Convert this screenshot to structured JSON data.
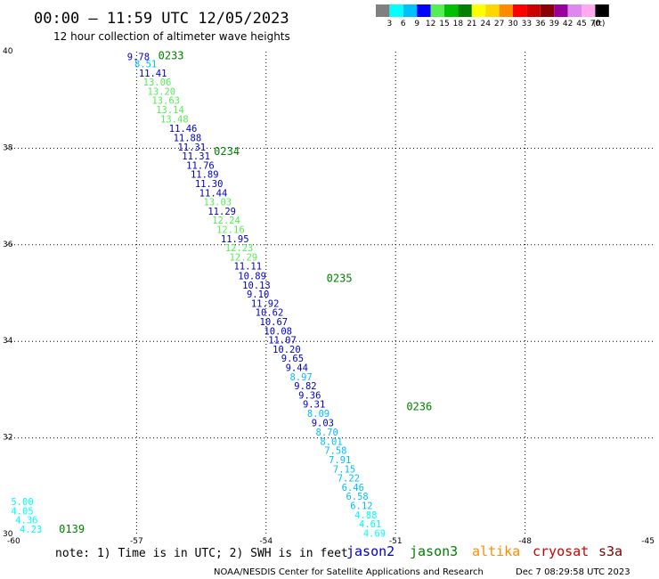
{
  "title": "00:00 – 11:59 UTC 12/05/2023",
  "subtitle": "12 hour collection of altimeter wave heights",
  "note": "note: 1) Time is in UTC; 2) SWH is in feet",
  "credit": "NOAA/NESDIS Center for Satellite Applications and Research",
  "timestamp": "Dec  7 08:29:58 UTC 2023",
  "satellites": [
    {
      "name": "jason2",
      "color": "#0000cc"
    },
    {
      "name": "jason3",
      "color": "#008000"
    },
    {
      "name": "altika",
      "color": "#ff8c00"
    },
    {
      "name": "cryosat",
      "color": "#cc0000"
    },
    {
      "name": "s3a",
      "color": "#800000"
    }
  ],
  "colorbar": {
    "unit": "(ft)",
    "colors": [
      "#808080",
      "#00ffff",
      "#00bfff",
      "#0000ff",
      "#55ee55",
      "#00c000",
      "#008000",
      "#ffff00",
      "#ffd700",
      "#ff8c00",
      "#ff0000",
      "#cc0000",
      "#8b0000",
      "#990099",
      "#dd88ee",
      "#ffaaee",
      "#000000"
    ],
    "labels": [
      "3",
      "6",
      "9",
      "12",
      "15",
      "18",
      "21",
      "24",
      "27",
      "30",
      "33",
      "36",
      "39",
      "42",
      "45",
      "70"
    ]
  },
  "chart_data": {
    "type": "scatter",
    "title": "00:00 – 11:59 UTC 12/05/2023",
    "subtitle": "12 hour collection of altimeter wave heights",
    "xlim": [
      -60,
      -45
    ],
    "ylim": [
      30,
      40
    ],
    "xticks": [
      "-60",
      "-57",
      "-54",
      "-51",
      "-48",
      "-45"
    ],
    "yticks": [
      "30",
      "32",
      "34",
      "36",
      "38",
      "40"
    ],
    "grid": true,
    "points": [
      {
        "lon": -57.22,
        "lat": 39.9,
        "v": "9.78",
        "c": "#0000cc"
      },
      {
        "lon": -57.05,
        "lat": 39.75,
        "v": "8.51",
        "c": "#00bfff"
      },
      {
        "lon": -56.95,
        "lat": 39.56,
        "v": "11.41",
        "c": "#0000cc"
      },
      {
        "lon": -56.85,
        "lat": 39.37,
        "v": "13.06",
        "c": "#55ee55"
      },
      {
        "lon": -56.75,
        "lat": 39.18,
        "v": "13.20",
        "c": "#55ee55"
      },
      {
        "lon": -56.65,
        "lat": 38.99,
        "v": "13.63",
        "c": "#55ee55"
      },
      {
        "lon": -56.55,
        "lat": 38.8,
        "v": "13.14",
        "c": "#55ee55"
      },
      {
        "lon": -56.45,
        "lat": 38.61,
        "v": "13.48",
        "c": "#55ee55"
      },
      {
        "lon": -56.25,
        "lat": 38.41,
        "v": "11.46",
        "c": "#0000cc"
      },
      {
        "lon": -56.15,
        "lat": 38.22,
        "v": "11.88",
        "c": "#0000cc"
      },
      {
        "lon": -56.05,
        "lat": 38.03,
        "v": "11.31",
        "c": "#0000cc"
      },
      {
        "lon": -55.95,
        "lat": 37.84,
        "v": "11.31",
        "c": "#0000cc"
      },
      {
        "lon": -55.85,
        "lat": 37.65,
        "v": "11.76",
        "c": "#0000cc"
      },
      {
        "lon": -55.75,
        "lat": 37.46,
        "v": "11.89",
        "c": "#0000cc"
      },
      {
        "lon": -55.65,
        "lat": 37.27,
        "v": "11.30",
        "c": "#0000cc"
      },
      {
        "lon": -55.55,
        "lat": 37.08,
        "v": "11.44",
        "c": "#0000cc"
      },
      {
        "lon": -55.45,
        "lat": 36.89,
        "v": "13.03",
        "c": "#55ee55"
      },
      {
        "lon": -55.35,
        "lat": 36.7,
        "v": "11.29",
        "c": "#0000cc"
      },
      {
        "lon": -55.25,
        "lat": 36.51,
        "v": "12.24",
        "c": "#55ee55"
      },
      {
        "lon": -55.15,
        "lat": 36.32,
        "v": "12.16",
        "c": "#55ee55"
      },
      {
        "lon": -55.05,
        "lat": 36.13,
        "v": "11.95",
        "c": "#0000cc"
      },
      {
        "lon": -54.95,
        "lat": 35.94,
        "v": "12.23",
        "c": "#55ee55"
      },
      {
        "lon": -54.85,
        "lat": 35.75,
        "v": "12.29",
        "c": "#55ee55"
      },
      {
        "lon": -54.75,
        "lat": 35.56,
        "v": "11.11",
        "c": "#0000cc"
      },
      {
        "lon": -54.65,
        "lat": 35.36,
        "v": "10.89",
        "c": "#0000cc"
      },
      {
        "lon": -54.55,
        "lat": 35.17,
        "v": "10.13",
        "c": "#0000cc"
      },
      {
        "lon": -54.45,
        "lat": 34.98,
        "v": "9.10",
        "c": "#0000cc"
      },
      {
        "lon": -54.35,
        "lat": 34.79,
        "v": "11.92",
        "c": "#0000cc"
      },
      {
        "lon": -54.25,
        "lat": 34.6,
        "v": "10.62",
        "c": "#0000cc"
      },
      {
        "lon": -54.15,
        "lat": 34.41,
        "v": "10.67",
        "c": "#0000cc"
      },
      {
        "lon": -54.05,
        "lat": 34.22,
        "v": "10.08",
        "c": "#0000cc"
      },
      {
        "lon": -53.95,
        "lat": 34.03,
        "v": "11.07",
        "c": "#0000cc"
      },
      {
        "lon": -53.85,
        "lat": 33.84,
        "v": "10.20",
        "c": "#0000cc"
      },
      {
        "lon": -53.65,
        "lat": 33.65,
        "v": "9.65",
        "c": "#0000cc"
      },
      {
        "lon": -53.55,
        "lat": 33.46,
        "v": "9.44",
        "c": "#0000cc"
      },
      {
        "lon": -53.45,
        "lat": 33.27,
        "v": "8.97",
        "c": "#00bfff"
      },
      {
        "lon": -53.35,
        "lat": 33.08,
        "v": "9.82",
        "c": "#0000cc"
      },
      {
        "lon": -53.25,
        "lat": 32.89,
        "v": "9.36",
        "c": "#0000cc"
      },
      {
        "lon": -53.15,
        "lat": 32.7,
        "v": "9.31",
        "c": "#0000cc"
      },
      {
        "lon": -53.05,
        "lat": 32.51,
        "v": "8.09",
        "c": "#00bfff"
      },
      {
        "lon": -52.95,
        "lat": 32.32,
        "v": "9.03",
        "c": "#0000cc"
      },
      {
        "lon": -52.85,
        "lat": 32.12,
        "v": "8.70",
        "c": "#00bfff"
      },
      {
        "lon": -52.75,
        "lat": 31.93,
        "v": "8.01",
        "c": "#00bfff"
      },
      {
        "lon": -52.65,
        "lat": 31.74,
        "v": "7.58",
        "c": "#00bfff"
      },
      {
        "lon": -52.55,
        "lat": 31.55,
        "v": "7.91",
        "c": "#00bfff"
      },
      {
        "lon": -52.45,
        "lat": 31.36,
        "v": "7.15",
        "c": "#00bfff"
      },
      {
        "lon": -52.35,
        "lat": 31.17,
        "v": "7.22",
        "c": "#00bfff"
      },
      {
        "lon": -52.25,
        "lat": 30.98,
        "v": "6.46",
        "c": "#00bfff"
      },
      {
        "lon": -52.15,
        "lat": 30.79,
        "v": "6.58",
        "c": "#00bfff"
      },
      {
        "lon": -52.05,
        "lat": 30.6,
        "v": "6.12",
        "c": "#00bfff"
      },
      {
        "lon": -51.95,
        "lat": 30.41,
        "v": "4.88",
        "c": "#00ffff"
      },
      {
        "lon": -51.85,
        "lat": 30.22,
        "v": "4.61",
        "c": "#00ffff"
      },
      {
        "lon": -51.75,
        "lat": 30.03,
        "v": "4.69",
        "c": "#00ffff"
      },
      {
        "lon": -59.91,
        "lat": 30.68,
        "v": "5.00",
        "c": "#00ffff"
      },
      {
        "lon": -59.91,
        "lat": 30.49,
        "v": "4.05",
        "c": "#00ffff"
      },
      {
        "lon": -59.81,
        "lat": 30.3,
        "v": "4.36",
        "c": "#00ffff"
      },
      {
        "lon": -59.71,
        "lat": 30.11,
        "v": "4.23",
        "c": "#00ffff"
      }
    ],
    "time_labels": [
      {
        "lon": -56.5,
        "lat": 39.92,
        "t": "0233"
      },
      {
        "lon": -55.21,
        "lat": 37.93,
        "t": "0234"
      },
      {
        "lon": -52.6,
        "lat": 35.3,
        "t": "0235"
      },
      {
        "lon": -50.75,
        "lat": 32.65,
        "t": "0236"
      },
      {
        "lon": -58.8,
        "lat": 30.11,
        "t": "0139"
      }
    ]
  }
}
